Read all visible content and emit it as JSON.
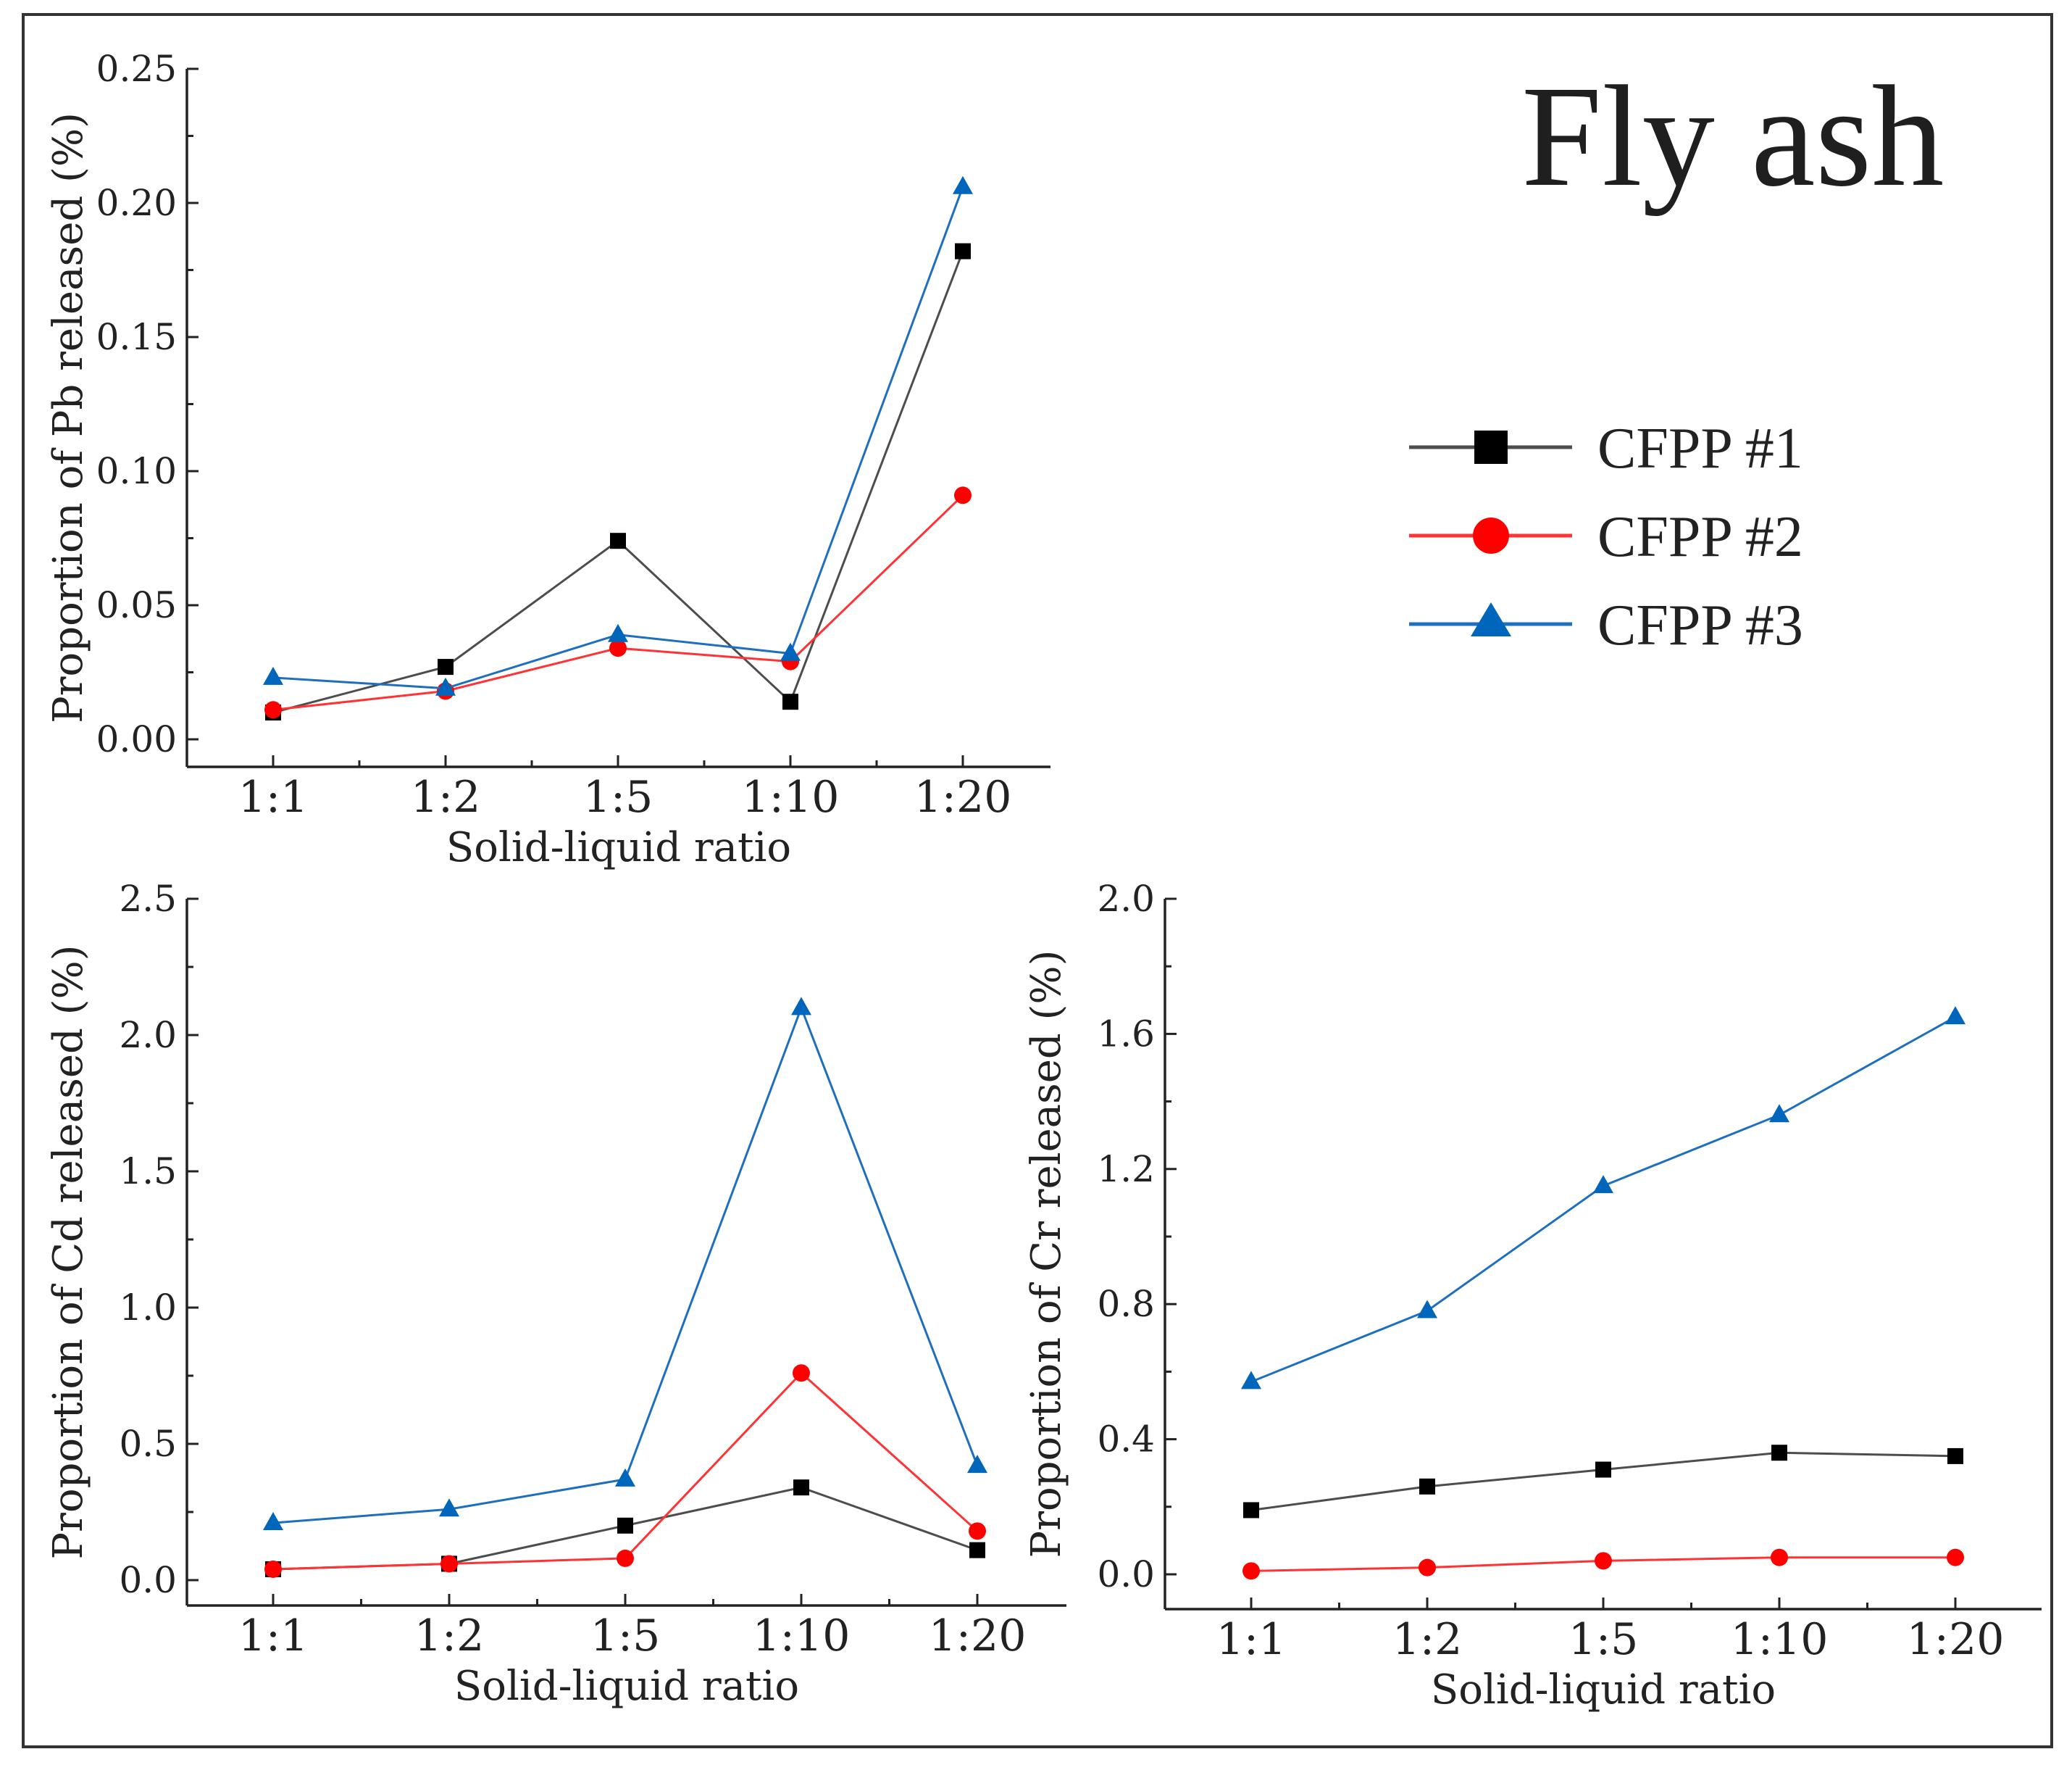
{
  "title": "Fly ash",
  "legend": [
    {
      "name": "CFPP #1",
      "color": "#4d4d4d",
      "marker_color": "#000000",
      "marker": "square"
    },
    {
      "name": "CFPP #2",
      "color": "#ff3333",
      "marker_color": "#ff0000",
      "marker": "circle"
    },
    {
      "name": "CFPP #3",
      "color": "#1f6fbf",
      "marker_color": "#0066bb",
      "marker": "triangle"
    }
  ],
  "chart_data": [
    {
      "id": "pb",
      "type": "line",
      "title": "",
      "xlabel": "Solid-liquid ratio",
      "ylabel": "Proportion of Pb released (%)",
      "categories": [
        "1:1",
        "1:2",
        "1:5",
        "1:10",
        "1:20"
      ],
      "ylim": [
        0,
        0.25
      ],
      "yticks": [
        0,
        0.05,
        0.1,
        0.15,
        0.2,
        0.25
      ],
      "ytick_labels": [
        "0.00",
        "0.05",
        "0.10",
        "0.15",
        "0.20",
        "0.25"
      ],
      "series": [
        {
          "name": "CFPP #1",
          "values": [
            0.01,
            0.027,
            0.074,
            0.014,
            0.182
          ]
        },
        {
          "name": "CFPP #2",
          "values": [
            0.011,
            0.018,
            0.034,
            0.029,
            0.091
          ]
        },
        {
          "name": "CFPP #3",
          "values": [
            0.023,
            0.019,
            0.039,
            0.032,
            0.206
          ]
        }
      ]
    },
    {
      "id": "cd",
      "type": "line",
      "title": "",
      "xlabel": "Solid-liquid ratio",
      "ylabel": "Proportion of Cd released (%)",
      "categories": [
        "1:1",
        "1:2",
        "1:5",
        "1:10",
        "1:20"
      ],
      "ylim": [
        0,
        2.5
      ],
      "yticks": [
        0,
        0.5,
        1.0,
        1.5,
        2.0,
        2.5
      ],
      "ytick_labels": [
        "0.0",
        "0.5",
        "1.0",
        "1.5",
        "2.0",
        "2.5"
      ],
      "series": [
        {
          "name": "CFPP #1",
          "values": [
            0.04,
            0.06,
            0.2,
            0.34,
            0.11
          ]
        },
        {
          "name": "CFPP #2",
          "values": [
            0.04,
            0.06,
            0.08,
            0.76,
            0.18
          ]
        },
        {
          "name": "CFPP #3",
          "values": [
            0.21,
            0.26,
            0.37,
            2.1,
            0.42
          ]
        }
      ]
    },
    {
      "id": "cr",
      "type": "line",
      "title": "",
      "xlabel": "Solid-liquid ratio",
      "ylabel": "Proportion of Cr released (%)",
      "categories": [
        "1:1",
        "1:2",
        "1:5",
        "1:10",
        "1:20"
      ],
      "ylim": [
        0,
        2.0
      ],
      "yticks": [
        0,
        0.4,
        0.8,
        1.2,
        1.6,
        2.0
      ],
      "ytick_labels": [
        "0.0",
        "0.4",
        "0.8",
        "1.2",
        "1.6",
        "2.0"
      ],
      "series": [
        {
          "name": "CFPP #1",
          "values": [
            0.19,
            0.26,
            0.31,
            0.36,
            0.35
          ]
        },
        {
          "name": "CFPP #2",
          "values": [
            0.01,
            0.02,
            0.04,
            0.05,
            0.05
          ]
        },
        {
          "name": "CFPP #3",
          "values": [
            0.57,
            0.78,
            1.15,
            1.36,
            1.65
          ]
        }
      ]
    }
  ]
}
